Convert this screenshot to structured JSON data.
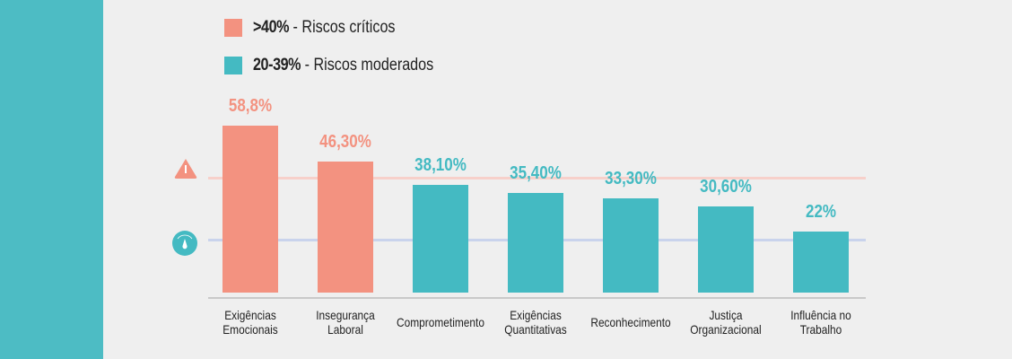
{
  "colors": {
    "critical": "#f39280",
    "moderate": "#44bac2",
    "band": "#4dbcc4",
    "critical_line": "#f7d0ca",
    "moderate_line": "#c9d3ec"
  },
  "legend": [
    {
      "range": ">40%",
      "label": " - Riscos críticos"
    },
    {
      "range": "20-39%",
      "label": " - Riscos moderados"
    }
  ],
  "chart_data": {
    "type": "bar",
    "categories": [
      [
        "Exigências",
        "Emocionais"
      ],
      [
        "Insegurança",
        "Laboral"
      ],
      [
        "Comprometimento"
      ],
      [
        "Exigências",
        "Quantitativas"
      ],
      [
        "Reconhecimento"
      ],
      [
        "Justiça",
        "Organizacional"
      ],
      [
        "Influência no",
        "Trabalho"
      ]
    ],
    "values": [
      58.8,
      46.3,
      38.1,
      35.4,
      33.3,
      30.6,
      22
    ],
    "labels": [
      "58,8%",
      "46,30%",
      "38,10%",
      "35,40%",
      "33,30%",
      "30,60%",
      "22%"
    ],
    "thresholds": [
      {
        "value": 40,
        "name": "critical",
        "icon": "warning-triangle-icon"
      },
      {
        "value": 20,
        "name": "moderate",
        "icon": "gauge-icon"
      }
    ],
    "ylim": [
      0,
      60
    ],
    "grid": false,
    "legend_position": "top-left"
  }
}
